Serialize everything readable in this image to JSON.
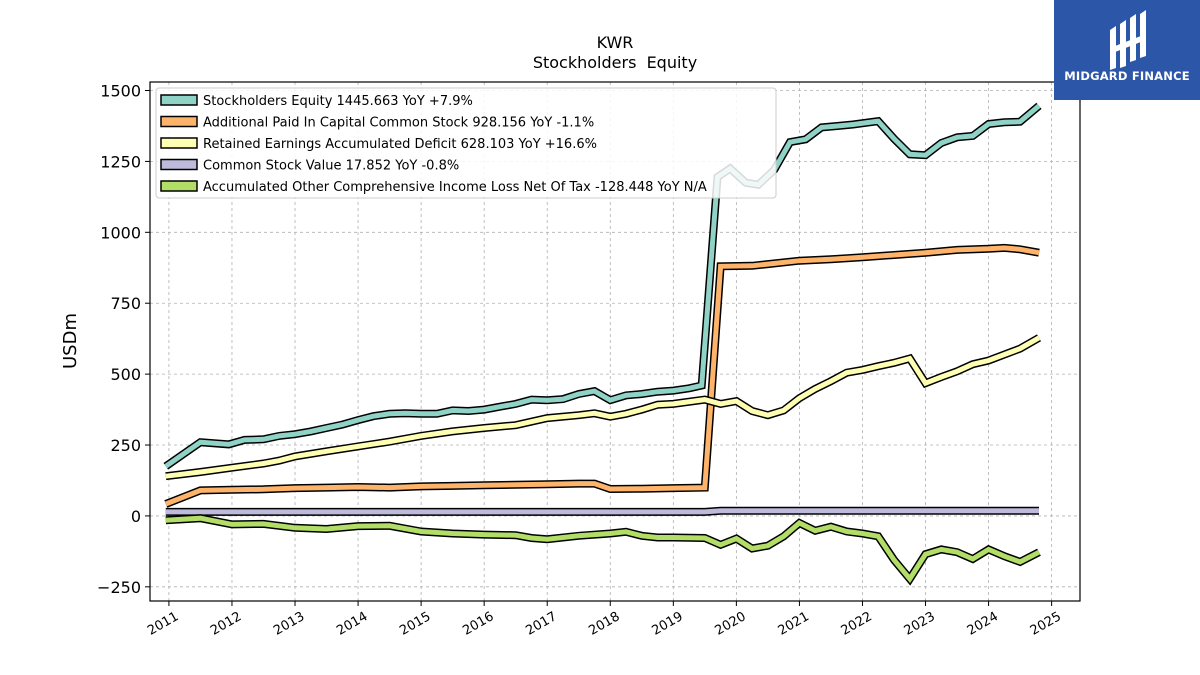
{
  "brand": {
    "name": "MIDGARD FINANCE",
    "bg_color": "#2c56a8"
  },
  "chart_data": {
    "type": "line",
    "title": "KWR",
    "subtitle": "Stockholders  Equity",
    "ylabel": "USDm",
    "xlabel": "",
    "ylim": [
      -300,
      1530
    ],
    "xlim": [
      2010.7,
      2025.45
    ],
    "yticks": [
      -250,
      0,
      250,
      500,
      750,
      1000,
      1250,
      1500
    ],
    "ytick_labels": [
      "−250",
      "0",
      "250",
      "500",
      "750",
      "1000",
      "1250",
      "1500"
    ],
    "xticks": [
      2011,
      2012,
      2013,
      2014,
      2015,
      2016,
      2017,
      2018,
      2019,
      2020,
      2021,
      2022,
      2023,
      2024,
      2025
    ],
    "xtick_labels": [
      "2011",
      "2012",
      "2013",
      "2014",
      "2015",
      "2016",
      "2017",
      "2018",
      "2019",
      "2020",
      "2021",
      "2022",
      "2023",
      "2024",
      "2025"
    ],
    "grid": true,
    "legend_position": "top-left",
    "series": [
      {
        "name": "Stockholders Equity  1445.663 YoY +7.9%",
        "color": "#8fd3c7",
        "points": [
          [
            2010.95,
            175
          ],
          [
            2011.5,
            260
          ],
          [
            2011.95,
            252
          ],
          [
            2012.2,
            268
          ],
          [
            2012.5,
            270
          ],
          [
            2012.75,
            282
          ],
          [
            2013.0,
            288
          ],
          [
            2013.25,
            298
          ],
          [
            2013.5,
            310
          ],
          [
            2013.75,
            322
          ],
          [
            2014.0,
            338
          ],
          [
            2014.25,
            352
          ],
          [
            2014.5,
            360
          ],
          [
            2014.75,
            362
          ],
          [
            2015.0,
            360
          ],
          [
            2015.25,
            360
          ],
          [
            2015.5,
            372
          ],
          [
            2015.75,
            370
          ],
          [
            2016.0,
            375
          ],
          [
            2016.25,
            385
          ],
          [
            2016.5,
            395
          ],
          [
            2016.75,
            410
          ],
          [
            2017.0,
            408
          ],
          [
            2017.25,
            412
          ],
          [
            2017.5,
            430
          ],
          [
            2017.75,
            440
          ],
          [
            2018.0,
            408
          ],
          [
            2018.25,
            425
          ],
          [
            2018.5,
            430
          ],
          [
            2018.75,
            438
          ],
          [
            2019.0,
            442
          ],
          [
            2019.25,
            450
          ],
          [
            2019.45,
            460
          ],
          [
            2019.7,
            1195
          ],
          [
            2019.9,
            1225
          ],
          [
            2020.15,
            1175
          ],
          [
            2020.35,
            1168
          ],
          [
            2020.6,
            1220
          ],
          [
            2020.85,
            1318
          ],
          [
            2021.1,
            1328
          ],
          [
            2021.35,
            1370
          ],
          [
            2021.6,
            1375
          ],
          [
            2021.85,
            1380
          ],
          [
            2022.25,
            1392
          ],
          [
            2022.5,
            1330
          ],
          [
            2022.75,
            1275
          ],
          [
            2023.0,
            1272
          ],
          [
            2023.25,
            1315
          ],
          [
            2023.5,
            1335
          ],
          [
            2023.75,
            1340
          ],
          [
            2024.0,
            1382
          ],
          [
            2024.25,
            1388
          ],
          [
            2024.5,
            1390
          ],
          [
            2024.8,
            1446
          ]
        ]
      },
      {
        "name": "Additional Paid In Capital Common Stock  928.156 YoY -1.1%",
        "color": "#fdb46a",
        "points": [
          [
            2010.95,
            42
          ],
          [
            2011.5,
            90
          ],
          [
            2012.0,
            92
          ],
          [
            2012.5,
            94
          ],
          [
            2013.0,
            98
          ],
          [
            2013.5,
            100
          ],
          [
            2014.0,
            102
          ],
          [
            2014.5,
            100
          ],
          [
            2015.0,
            104
          ],
          [
            2015.5,
            106
          ],
          [
            2016.0,
            108
          ],
          [
            2016.5,
            110
          ],
          [
            2017.0,
            112
          ],
          [
            2017.5,
            114
          ],
          [
            2017.75,
            114
          ],
          [
            2018.0,
            95
          ],
          [
            2018.5,
            96
          ],
          [
            2019.0,
            98
          ],
          [
            2019.5,
            100
          ],
          [
            2019.75,
            880
          ],
          [
            2020.25,
            882
          ],
          [
            2020.5,
            888
          ],
          [
            2021.0,
            900
          ],
          [
            2021.5,
            905
          ],
          [
            2022.0,
            912
          ],
          [
            2022.5,
            920
          ],
          [
            2023.0,
            928
          ],
          [
            2023.5,
            938
          ],
          [
            2024.0,
            942
          ],
          [
            2024.25,
            945
          ],
          [
            2024.5,
            940
          ],
          [
            2024.8,
            928
          ]
        ]
      },
      {
        "name": "Retained Earnings Accumulated Deficit  628.103 YoY +16.6%",
        "color": "#ffffb3",
        "points": [
          [
            2010.95,
            140
          ],
          [
            2011.5,
            155
          ],
          [
            2012.0,
            170
          ],
          [
            2012.5,
            185
          ],
          [
            2012.75,
            195
          ],
          [
            2013.0,
            210
          ],
          [
            2013.5,
            228
          ],
          [
            2014.0,
            245
          ],
          [
            2014.5,
            262
          ],
          [
            2015.0,
            282
          ],
          [
            2015.5,
            298
          ],
          [
            2016.0,
            310
          ],
          [
            2016.5,
            320
          ],
          [
            2017.0,
            345
          ],
          [
            2017.5,
            355
          ],
          [
            2017.75,
            362
          ],
          [
            2018.0,
            350
          ],
          [
            2018.25,
            360
          ],
          [
            2018.5,
            375
          ],
          [
            2018.75,
            392
          ],
          [
            2019.0,
            395
          ],
          [
            2019.5,
            410
          ],
          [
            2019.75,
            395
          ],
          [
            2020.0,
            405
          ],
          [
            2020.25,
            370
          ],
          [
            2020.5,
            355
          ],
          [
            2020.75,
            372
          ],
          [
            2021.0,
            415
          ],
          [
            2021.25,
            448
          ],
          [
            2021.5,
            475
          ],
          [
            2021.75,
            505
          ],
          [
            2022.0,
            515
          ],
          [
            2022.25,
            528
          ],
          [
            2022.5,
            540
          ],
          [
            2022.75,
            555
          ],
          [
            2023.0,
            468
          ],
          [
            2023.25,
            490
          ],
          [
            2023.5,
            510
          ],
          [
            2023.75,
            535
          ],
          [
            2024.0,
            548
          ],
          [
            2024.5,
            590
          ],
          [
            2024.8,
            628
          ]
        ]
      },
      {
        "name": "Common Stock Value  17.852 YoY -0.8%",
        "color": "#bebadb",
        "points": [
          [
            2010.95,
            14
          ],
          [
            2019.5,
            14
          ],
          [
            2019.75,
            18
          ],
          [
            2024.8,
            18
          ]
        ]
      },
      {
        "name": "Accumulated Other Comprehensive Income Loss Net Of Tax  -128.448 YoY N/A",
        "color": "#b2de68",
        "points": [
          [
            2010.95,
            -15
          ],
          [
            2011.5,
            -8
          ],
          [
            2012.0,
            -30
          ],
          [
            2012.5,
            -28
          ],
          [
            2013.0,
            -42
          ],
          [
            2013.5,
            -46
          ],
          [
            2014.0,
            -36
          ],
          [
            2014.5,
            -35
          ],
          [
            2015.0,
            -55
          ],
          [
            2015.5,
            -62
          ],
          [
            2016.0,
            -66
          ],
          [
            2016.5,
            -68
          ],
          [
            2016.75,
            -78
          ],
          [
            2017.0,
            -82
          ],
          [
            2017.5,
            -70
          ],
          [
            2018.0,
            -62
          ],
          [
            2018.25,
            -56
          ],
          [
            2018.5,
            -70
          ],
          [
            2018.75,
            -76
          ],
          [
            2019.0,
            -76
          ],
          [
            2019.5,
            -78
          ],
          [
            2019.75,
            -102
          ],
          [
            2020.0,
            -80
          ],
          [
            2020.25,
            -115
          ],
          [
            2020.5,
            -105
          ],
          [
            2020.75,
            -72
          ],
          [
            2021.0,
            -25
          ],
          [
            2021.25,
            -52
          ],
          [
            2021.5,
            -38
          ],
          [
            2021.75,
            -55
          ],
          [
            2022.0,
            -62
          ],
          [
            2022.25,
            -72
          ],
          [
            2022.5,
            -155
          ],
          [
            2022.75,
            -222
          ],
          [
            2023.0,
            -135
          ],
          [
            2023.25,
            -118
          ],
          [
            2023.5,
            -128
          ],
          [
            2023.75,
            -152
          ],
          [
            2024.0,
            -118
          ],
          [
            2024.25,
            -142
          ],
          [
            2024.5,
            -162
          ],
          [
            2024.8,
            -128
          ]
        ]
      }
    ]
  }
}
